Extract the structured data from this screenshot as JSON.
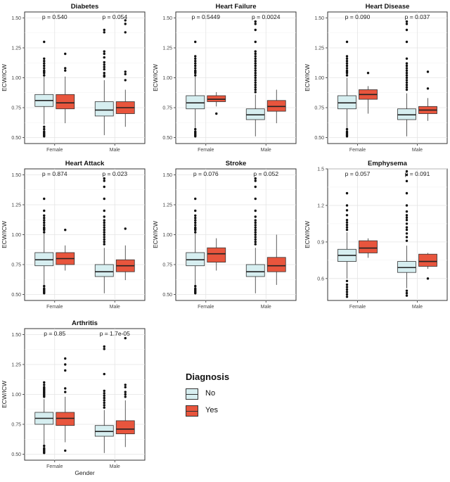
{
  "chart_data": {
    "type": "box",
    "ylabel": "ECW/ICW",
    "xlabel": "Gender",
    "categories": [
      "Female",
      "Male"
    ],
    "series": [
      "No",
      "Yes"
    ],
    "colors": {
      "No": "#d6eef0",
      "Yes": "#e8553d"
    },
    "legend": {
      "title": "Diagnosis",
      "items": [
        "No",
        "Yes"
      ]
    },
    "panels": [
      {
        "title": "Diabetes",
        "ylim": [
          0.45,
          1.55
        ],
        "ticks": [
          0.5,
          0.75,
          1.0,
          1.25,
          1.5
        ],
        "tick_labels": [
          "0.50",
          "0.75",
          "1.00",
          "1.25",
          "1.50"
        ],
        "pvalues": [
          "p = 0.540",
          "p = 0.054"
        ],
        "boxes": [
          {
            "g": 0,
            "s": "No",
            "q1": 0.76,
            "med": 0.81,
            "q3": 0.86,
            "lw": 0.61,
            "uw": 1.01,
            "out": [
              1.3,
              1.16,
              1.14,
              1.12,
              1.1,
              1.08,
              1.06,
              1.05,
              1.04,
              1.02,
              0.59,
              0.57,
              0.55,
              0.54,
              0.53,
              0.52,
              0.51
            ]
          },
          {
            "g": 0,
            "s": "Yes",
            "q1": 0.74,
            "med": 0.79,
            "q3": 0.86,
            "lw": 0.62,
            "uw": 1.01,
            "out": [
              1.2,
              1.08,
              1.06
            ]
          },
          {
            "g": 1,
            "s": "No",
            "q1": 0.68,
            "med": 0.73,
            "q3": 0.8,
            "lw": 0.52,
            "uw": 0.98,
            "out": [
              1.4,
              1.38,
              1.22,
              1.2,
              1.17,
              1.13,
              1.11,
              1.09,
              1.07,
              1.04,
              1.02,
              1.01
            ]
          },
          {
            "g": 1,
            "s": "Yes",
            "q1": 0.7,
            "med": 0.75,
            "q3": 0.8,
            "lw": 0.59,
            "uw": 0.9,
            "out": [
              1.48,
              1.45,
              1.38,
              1.05,
              1.03,
              0.98
            ]
          }
        ]
      },
      {
        "title": "Heart Failure",
        "ylim": [
          0.45,
          1.55
        ],
        "ticks": [
          0.5,
          0.75,
          1.0,
          1.25,
          1.5
        ],
        "tick_labels": [
          "0.50",
          "0.75",
          "1.00",
          "1.25",
          "1.50"
        ],
        "pvalues": [
          "p = 0.5449",
          "p = 0.0024"
        ],
        "boxes": [
          {
            "g": 0,
            "s": "No",
            "q1": 0.74,
            "med": 0.79,
            "q3": 0.85,
            "lw": 0.58,
            "uw": 1.01,
            "out": [
              1.3,
              1.18,
              1.16,
              1.14,
              1.12,
              1.1,
              1.08,
              1.06,
              1.05,
              1.04,
              1.02,
              0.57,
              0.55,
              0.54,
              0.53,
              0.52,
              0.51
            ]
          },
          {
            "g": 0,
            "s": "Yes",
            "q1": 0.8,
            "med": 0.82,
            "q3": 0.85,
            "lw": 0.76,
            "uw": 0.88,
            "out": [
              0.7
            ]
          },
          {
            "g": 1,
            "s": "No",
            "q1": 0.65,
            "med": 0.69,
            "q3": 0.74,
            "lw": 0.51,
            "uw": 0.86,
            "out": [
              1.47,
              1.45,
              1.4,
              1.3,
              1.22,
              1.2,
              1.18,
              1.16,
              1.14,
              1.12,
              1.1,
              1.08,
              1.06,
              1.04,
              1.02,
              1.0,
              0.98,
              0.96,
              0.94,
              0.92,
              0.9,
              0.88
            ]
          },
          {
            "g": 1,
            "s": "Yes",
            "q1": 0.72,
            "med": 0.76,
            "q3": 0.81,
            "lw": 0.62,
            "uw": 0.9,
            "out": []
          }
        ]
      },
      {
        "title": "Heart Disease",
        "ylim": [
          0.45,
          1.55
        ],
        "ticks": [
          0.5,
          0.75,
          1.0,
          1.25,
          1.5
        ],
        "tick_labels": [
          "0.50",
          "0.75",
          "1.00",
          "1.25",
          "1.50"
        ],
        "pvalues": [
          "p = 0.090",
          "p = 0.037"
        ],
        "boxes": [
          {
            "g": 0,
            "s": "No",
            "q1": 0.74,
            "med": 0.79,
            "q3": 0.85,
            "lw": 0.58,
            "uw": 1.0,
            "out": [
              1.3,
              1.18,
              1.16,
              1.14,
              1.12,
              1.1,
              1.08,
              1.06,
              1.05,
              1.04,
              1.02,
              0.57,
              0.55,
              0.54,
              0.53,
              0.52,
              0.51
            ]
          },
          {
            "g": 0,
            "s": "Yes",
            "q1": 0.82,
            "med": 0.86,
            "q3": 0.9,
            "lw": 0.7,
            "uw": 0.93,
            "out": [
              1.04
            ]
          },
          {
            "g": 1,
            "s": "No",
            "q1": 0.65,
            "med": 0.69,
            "q3": 0.74,
            "lw": 0.51,
            "uw": 0.87,
            "out": [
              1.47,
              1.45,
              1.4,
              1.3,
              1.16,
              1.12,
              1.1,
              1.08,
              1.06,
              1.04,
              1.02,
              1.0,
              0.98,
              0.96,
              0.94,
              0.92,
              0.9
            ]
          },
          {
            "g": 1,
            "s": "Yes",
            "q1": 0.7,
            "med": 0.73,
            "q3": 0.76,
            "lw": 0.64,
            "uw": 0.83,
            "out": [
              1.05,
              0.91
            ]
          }
        ]
      },
      {
        "title": "Heart Attack",
        "ylim": [
          0.45,
          1.55
        ],
        "ticks": [
          0.5,
          0.75,
          1.0,
          1.25,
          1.5
        ],
        "tick_labels": [
          "0.50",
          "0.75",
          "1.00",
          "1.25",
          "1.50"
        ],
        "pvalues": [
          "p = 0.874",
          "p = 0.023"
        ],
        "boxes": [
          {
            "g": 0,
            "s": "No",
            "q1": 0.74,
            "med": 0.79,
            "q3": 0.85,
            "lw": 0.58,
            "uw": 1.01,
            "out": [
              1.3,
              1.2,
              1.16,
              1.14,
              1.12,
              1.1,
              1.08,
              1.06,
              1.05,
              1.04,
              1.02,
              0.57,
              0.55,
              0.54,
              0.53,
              0.52,
              0.51
            ]
          },
          {
            "g": 0,
            "s": "Yes",
            "q1": 0.75,
            "med": 0.8,
            "q3": 0.85,
            "lw": 0.7,
            "uw": 0.91,
            "out": [
              1.04
            ]
          },
          {
            "g": 1,
            "s": "No",
            "q1": 0.65,
            "med": 0.69,
            "q3": 0.75,
            "lw": 0.51,
            "uw": 0.89,
            "out": [
              1.47,
              1.45,
              1.4,
              1.3,
              1.2,
              1.15,
              1.12,
              1.1,
              1.08,
              1.06,
              1.04,
              1.02,
              1.0,
              0.98,
              0.96,
              0.94,
              0.92
            ]
          },
          {
            "g": 1,
            "s": "Yes",
            "q1": 0.69,
            "med": 0.74,
            "q3": 0.79,
            "lw": 0.62,
            "uw": 0.91,
            "out": [
              1.05
            ]
          }
        ]
      },
      {
        "title": "Stroke",
        "ylim": [
          0.45,
          1.55
        ],
        "ticks": [
          0.5,
          0.75,
          1.0,
          1.25,
          1.5
        ],
        "tick_labels": [
          "0.50",
          "0.75",
          "1.00",
          "1.25",
          "1.50"
        ],
        "pvalues": [
          "p = 0.076",
          "p = 0.052"
        ],
        "boxes": [
          {
            "g": 0,
            "s": "No",
            "q1": 0.74,
            "med": 0.79,
            "q3": 0.85,
            "lw": 0.58,
            "uw": 1.01,
            "out": [
              1.3,
              1.2,
              1.16,
              1.14,
              1.12,
              1.1,
              1.08,
              1.06,
              1.05,
              1.04,
              1.02,
              0.57,
              0.55,
              0.54,
              0.53,
              0.52,
              0.51
            ]
          },
          {
            "g": 0,
            "s": "Yes",
            "q1": 0.77,
            "med": 0.84,
            "q3": 0.89,
            "lw": 0.7,
            "uw": 0.97,
            "out": []
          },
          {
            "g": 1,
            "s": "No",
            "q1": 0.65,
            "med": 0.69,
            "q3": 0.75,
            "lw": 0.51,
            "uw": 0.89,
            "out": [
              1.47,
              1.45,
              1.4,
              1.3,
              1.2,
              1.15,
              1.12,
              1.1,
              1.08,
              1.06,
              1.04,
              1.02,
              1.0,
              0.98,
              0.96,
              0.94,
              0.92
            ]
          },
          {
            "g": 1,
            "s": "Yes",
            "q1": 0.69,
            "med": 0.74,
            "q3": 0.81,
            "lw": 0.58,
            "uw": 1.0,
            "out": []
          }
        ]
      },
      {
        "title": "Emphysema",
        "ylim": [
          0.42,
          1.5
        ],
        "ticks": [
          0.6,
          0.9,
          1.2,
          1.5
        ],
        "tick_labels": [
          "0.6",
          "0.9",
          "1.2",
          "1.5"
        ],
        "pvalues": [
          "p = 0.057",
          "p = 0.091"
        ],
        "boxes": [
          {
            "g": 0,
            "s": "No",
            "q1": 0.74,
            "med": 0.79,
            "q3": 0.84,
            "lw": 0.6,
            "uw": 0.98,
            "out": [
              1.3,
              1.2,
              1.16,
              1.12,
              1.08,
              1.06,
              1.04,
              1.02,
              1.0,
              0.58,
              0.55,
              0.53,
              0.51,
              0.49,
              0.47,
              0.45
            ]
          },
          {
            "g": 0,
            "s": "Yes",
            "q1": 0.81,
            "med": 0.85,
            "q3": 0.91,
            "lw": 0.77,
            "uw": 0.93,
            "out": []
          },
          {
            "g": 1,
            "s": "No",
            "q1": 0.65,
            "med": 0.69,
            "q3": 0.74,
            "lw": 0.52,
            "uw": 0.87,
            "out": [
              1.48,
              1.45,
              1.4,
              1.3,
              1.2,
              1.15,
              1.12,
              1.1,
              1.08,
              1.05,
              1.02,
              1.0,
              0.97,
              0.94,
              0.91,
              0.5,
              0.48,
              0.46
            ]
          },
          {
            "g": 1,
            "s": "Yes",
            "q1": 0.7,
            "med": 0.74,
            "q3": 0.8,
            "lw": 0.68,
            "uw": 0.81,
            "out": [
              0.6
            ]
          }
        ]
      },
      {
        "title": "Arthritis",
        "ylim": [
          0.45,
          1.55
        ],
        "ticks": [
          0.5,
          0.75,
          1.0,
          1.25,
          1.5
        ],
        "tick_labels": [
          "0.50",
          "0.75",
          "1.00",
          "1.25",
          "1.50"
        ],
        "pvalues": [
          "p = 0.85",
          "p = 1.7e-05"
        ],
        "show_xlabel": true,
        "boxes": [
          {
            "g": 0,
            "s": "No",
            "q1": 0.75,
            "med": 0.8,
            "q3": 0.85,
            "lw": 0.58,
            "uw": 0.96,
            "out": [
              1.1,
              1.08,
              1.06,
              1.05,
              1.04,
              1.03,
              1.02,
              1.01,
              1.0,
              0.99,
              0.98,
              0.57,
              0.55,
              0.54,
              0.53,
              0.52,
              0.51
            ]
          },
          {
            "g": 0,
            "s": "Yes",
            "q1": 0.74,
            "med": 0.8,
            "q3": 0.85,
            "lw": 0.6,
            "uw": 0.98,
            "out": [
              1.3,
              1.25,
              1.2,
              1.05,
              1.02,
              0.53
            ]
          },
          {
            "g": 1,
            "s": "No",
            "q1": 0.65,
            "med": 0.69,
            "q3": 0.74,
            "lw": 0.51,
            "uw": 0.87,
            "out": [
              1.4,
              1.38,
              1.17,
              1.03,
              1.01,
              0.99,
              0.97,
              0.95,
              0.93,
              0.91,
              0.89
            ]
          },
          {
            "g": 1,
            "s": "Yes",
            "q1": 0.67,
            "med": 0.71,
            "q3": 0.78,
            "lw": 0.56,
            "uw": 0.95,
            "out": [
              1.47,
              1.08,
              1.06,
              1.02,
              1.0,
              0.98
            ]
          }
        ]
      }
    ]
  }
}
